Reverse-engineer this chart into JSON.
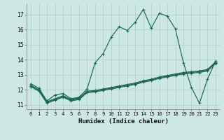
{
  "xlabel": "Humidex (Indice chaleur)",
  "bg_color": "#cde8e2",
  "grid_color": "#b5d5cc",
  "line_color": "#1a6655",
  "xlim": [
    -0.5,
    23.5
  ],
  "ylim": [
    10.7,
    17.7
  ],
  "yticks": [
    11,
    12,
    13,
    14,
    15,
    16,
    17
  ],
  "xticks": [
    0,
    1,
    2,
    3,
    4,
    5,
    6,
    7,
    8,
    9,
    10,
    11,
    12,
    13,
    14,
    15,
    16,
    17,
    18,
    19,
    20,
    21,
    22,
    23
  ],
  "curve1_x": [
    0,
    1,
    2,
    3,
    4,
    5,
    6,
    7,
    8,
    9,
    10,
    11,
    12,
    13,
    14,
    15,
    16,
    17,
    18,
    19,
    20,
    21,
    22,
    23
  ],
  "curve1_y": [
    12.4,
    12.1,
    11.25,
    11.65,
    11.75,
    11.4,
    11.5,
    12.05,
    13.8,
    14.4,
    15.5,
    16.2,
    15.95,
    16.5,
    17.35,
    16.1,
    17.1,
    16.9,
    16.05,
    13.8,
    12.15,
    11.1,
    12.7,
    13.9
  ],
  "curve2_x": [
    0,
    1,
    2,
    3,
    4,
    5,
    6,
    7,
    8,
    9,
    10,
    11,
    12,
    13,
    14,
    15,
    16,
    17,
    18,
    19,
    20,
    21,
    22,
    23
  ],
  "curve2_y": [
    12.3,
    12.0,
    11.2,
    11.4,
    11.6,
    11.35,
    11.45,
    11.9,
    11.95,
    12.05,
    12.15,
    12.25,
    12.35,
    12.45,
    12.6,
    12.7,
    12.85,
    12.95,
    13.05,
    13.15,
    13.2,
    13.25,
    13.35,
    13.85
  ],
  "curve3_x": [
    0,
    1,
    2,
    3,
    4,
    5,
    6,
    7,
    8,
    9,
    10,
    11,
    12,
    13,
    14,
    15,
    16,
    17,
    18,
    19,
    20,
    21,
    22,
    23
  ],
  "curve3_y": [
    12.25,
    11.95,
    11.15,
    11.35,
    11.55,
    11.3,
    11.4,
    11.85,
    11.9,
    12.0,
    12.1,
    12.2,
    12.3,
    12.4,
    12.55,
    12.65,
    12.8,
    12.9,
    13.0,
    13.1,
    13.15,
    13.2,
    13.3,
    13.8
  ],
  "curve4_x": [
    0,
    1,
    2,
    3,
    4,
    5,
    6,
    7,
    8,
    9,
    10,
    11,
    12,
    13,
    14,
    15,
    16,
    17,
    18,
    19,
    20,
    21,
    22,
    23
  ],
  "curve4_y": [
    12.2,
    11.9,
    11.1,
    11.3,
    11.5,
    11.25,
    11.35,
    11.8,
    11.85,
    11.95,
    12.05,
    12.15,
    12.25,
    12.35,
    12.5,
    12.6,
    12.75,
    12.85,
    12.95,
    13.05,
    13.1,
    13.15,
    13.25,
    13.75
  ]
}
